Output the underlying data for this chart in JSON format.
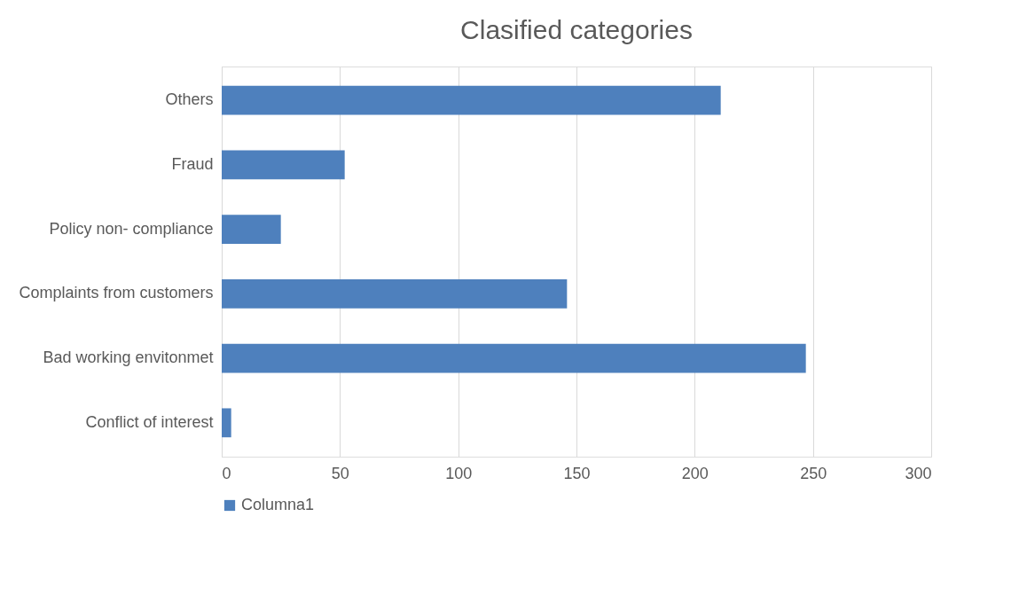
{
  "chart_data": {
    "type": "bar",
    "orientation": "horizontal",
    "title": "Clasified categories",
    "categories": [
      "Others",
      "Fraud",
      "Policy non- compliance",
      "Complaints from customers",
      "Bad working envitonmet",
      "Conflict of interest"
    ],
    "series": [
      {
        "name": "Columna1",
        "color": "#4e80bd",
        "values": [
          211,
          52,
          25,
          146,
          247,
          4
        ]
      }
    ],
    "xlim": [
      0,
      300
    ],
    "xticks": [
      0,
      50,
      100,
      150,
      200,
      250,
      300
    ],
    "grid": "x",
    "legend": "bottom"
  }
}
